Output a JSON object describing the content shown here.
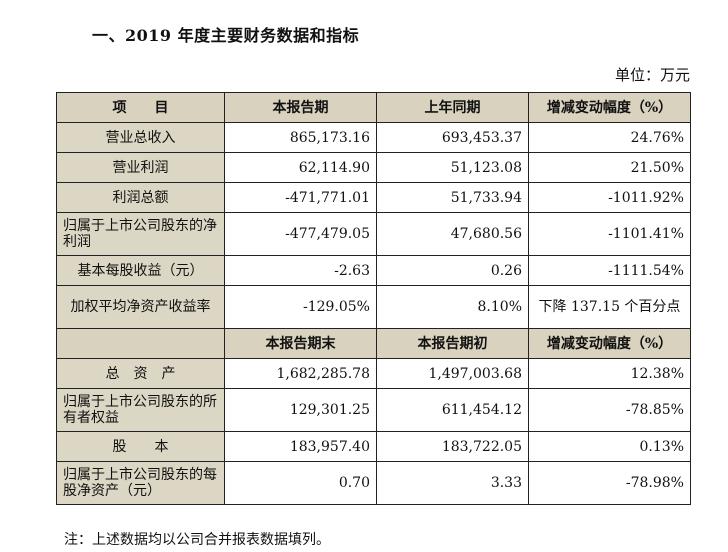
{
  "heading": "一、2019 年度主要财务数据和指标",
  "unit": "单位：万元",
  "header1": [
    "项　　目",
    "本报告期",
    "上年同期",
    "增减变动幅度（%）"
  ],
  "rows1": [
    {
      "label": "营业总收入",
      "current": "865,173.16",
      "previous": "693,453.37",
      "change": "24.76%"
    },
    {
      "label": "营业利润",
      "current": "62,114.90",
      "previous": "51,123.08",
      "change": "21.50%"
    },
    {
      "label": "利润总额",
      "current": "-471,771.01",
      "previous": "51,733.94",
      "change": "-1011.92%"
    },
    {
      "label": "归属于上市公司股东的净利润",
      "current": "-477,479.05",
      "previous": "47,680.56",
      "change": "-1101.41%"
    },
    {
      "label": "基本每股收益（元）",
      "current": "-2.63",
      "previous": "0.26",
      "change": "-1111.54%"
    },
    {
      "label": "加权平均净资产收益率",
      "current": "-129.05%",
      "previous": "8.10%",
      "change": "下降 137.15 个百分点"
    }
  ],
  "header2": [
    "",
    "本报告期末",
    "本报告期初",
    "增减变动幅度（%）"
  ],
  "rows2": [
    {
      "label": "总　资　产",
      "current": "1,682,285.78",
      "previous": "1,497,003.68",
      "change": "12.38%"
    },
    {
      "label": "归属于上市公司股东的所有者权益",
      "current": "129,301.25",
      "previous": "611,454.12",
      "change": "-78.85%"
    },
    {
      "label": "股　　本",
      "current": "183,957.40",
      "previous": "183,722.05",
      "change": "0.13%"
    },
    {
      "label": "归属于上市公司股东的每股净资产（元）",
      "current": "0.70",
      "previous": "3.33",
      "change": "-78.98%"
    }
  ],
  "footnote": "注：上述数据均以公司合并报表数据填列。"
}
